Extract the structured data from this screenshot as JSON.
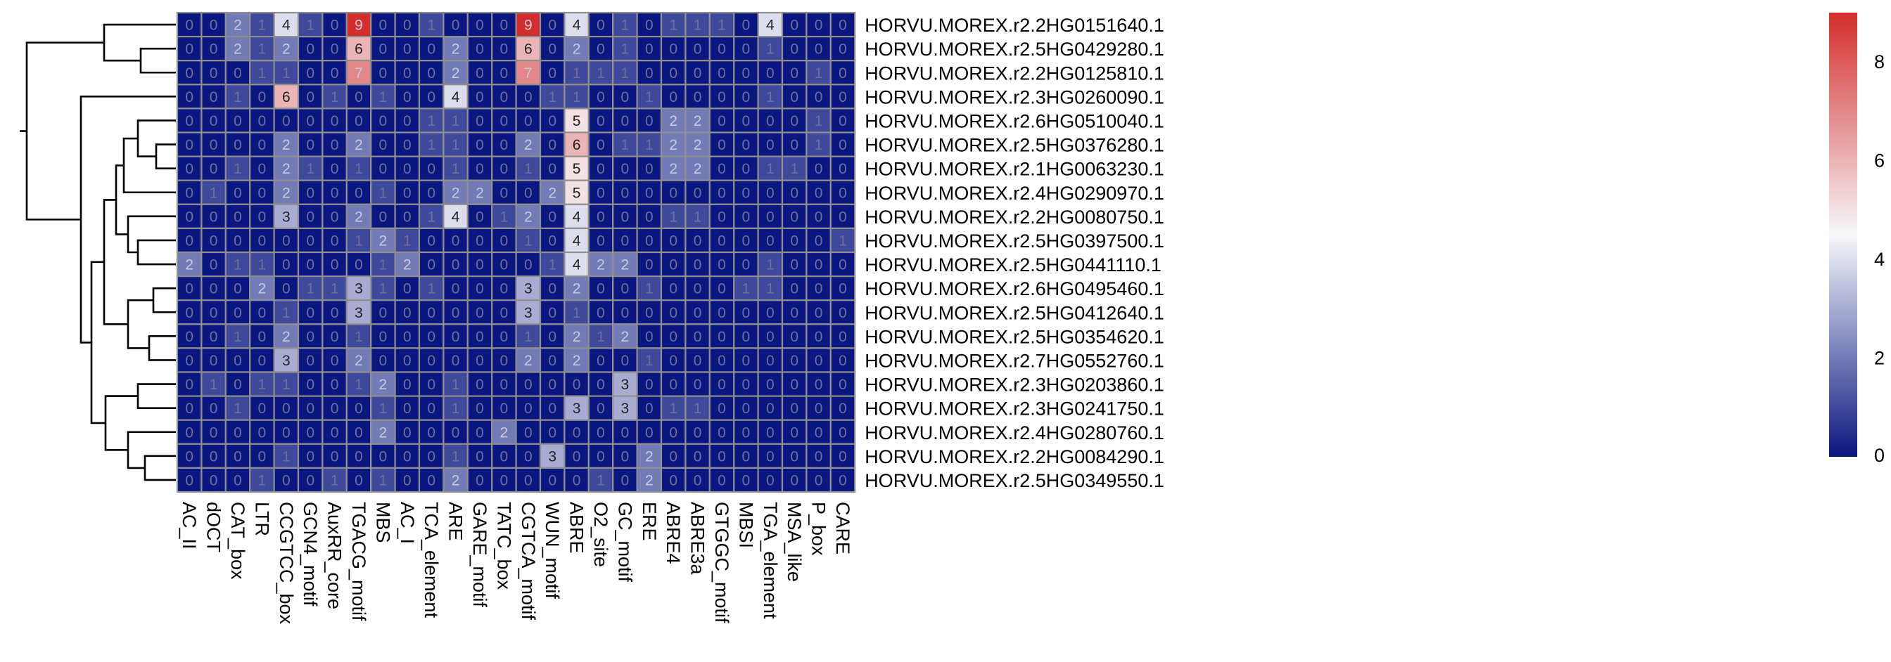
{
  "chart_data": {
    "type": "heatmap",
    "title": "",
    "xlabel": "",
    "ylabel": "",
    "columns": [
      "AC_II",
      "dOCT",
      "CAT_box",
      "LTR",
      "CCGTCC_box",
      "GCN4_motif",
      "AuxRR_core",
      "TGACG_motif",
      "MBS",
      "AC_I",
      "TCA_element",
      "ARE",
      "GARE_motif",
      "TATC_box",
      "CGTCA_motif",
      "WUN_motif",
      "ABRE",
      "O2_site",
      "GC_motif",
      "ERE",
      "ABRE4",
      "ABRE3a",
      "GTGGC_motif",
      "MBSI",
      "TGA_element",
      "MSA_like",
      "P_box",
      "CARE"
    ],
    "rows": [
      "HORVU.MOREX.r2.2HG0151640.1",
      "HORVU.MOREX.r2.5HG0429280.1",
      "HORVU.MOREX.r2.2HG0125810.1",
      "HORVU.MOREX.r2.3HG0260090.1",
      "HORVU.MOREX.r2.6HG0510040.1",
      "HORVU.MOREX.r2.5HG0376280.1",
      "HORVU.MOREX.r2.1HG0063230.1",
      "HORVU.MOREX.r2.4HG0290970.1",
      "HORVU.MOREX.r2.2HG0080750.1",
      "HORVU.MOREX.r2.5HG0397500.1",
      "HORVU.MOREX.r2.5HG0441110.1",
      "HORVU.MOREX.r2.6HG0495460.1",
      "HORVU.MOREX.r2.5HG0412640.1",
      "HORVU.MOREX.r2.5HG0354620.1",
      "HORVU.MOREX.r2.7HG0552760.1",
      "HORVU.MOREX.r2.3HG0203860.1",
      "HORVU.MOREX.r2.3HG0241750.1",
      "HORVU.MOREX.r2.4HG0280760.1",
      "HORVU.MOREX.r2.2HG0084290.1",
      "HORVU.MOREX.r2.5HG0349550.1"
    ],
    "values": [
      [
        0,
        0,
        2,
        1,
        4,
        1,
        0,
        9,
        0,
        0,
        1,
        0,
        0,
        0,
        9,
        0,
        4,
        0,
        1,
        0,
        1,
        1,
        1,
        0,
        4,
        0,
        0,
        0
      ],
      [
        0,
        0,
        2,
        1,
        2,
        0,
        0,
        6,
        0,
        0,
        0,
        2,
        0,
        0,
        6,
        0,
        2,
        0,
        1,
        0,
        0,
        0,
        0,
        0,
        1,
        0,
        0,
        0
      ],
      [
        0,
        0,
        0,
        1,
        1,
        0,
        0,
        7,
        0,
        0,
        0,
        2,
        0,
        0,
        7,
        0,
        1,
        1,
        1,
        0,
        0,
        0,
        0,
        0,
        0,
        0,
        1,
        0
      ],
      [
        0,
        0,
        1,
        0,
        6,
        0,
        1,
        0,
        1,
        0,
        0,
        4,
        0,
        0,
        0,
        1,
        1,
        0,
        0,
        1,
        0,
        0,
        0,
        0,
        1,
        0,
        0,
        0
      ],
      [
        0,
        0,
        0,
        0,
        0,
        0,
        0,
        0,
        0,
        0,
        1,
        1,
        0,
        0,
        0,
        0,
        5,
        0,
        0,
        0,
        2,
        2,
        0,
        0,
        0,
        0,
        1,
        0
      ],
      [
        0,
        0,
        0,
        0,
        2,
        0,
        0,
        2,
        0,
        0,
        1,
        1,
        0,
        0,
        2,
        0,
        6,
        0,
        1,
        1,
        2,
        2,
        0,
        0,
        0,
        0,
        1,
        0
      ],
      [
        0,
        0,
        1,
        0,
        2,
        1,
        0,
        1,
        0,
        0,
        0,
        1,
        0,
        0,
        1,
        0,
        5,
        0,
        0,
        0,
        2,
        2,
        0,
        0,
        1,
        1,
        0,
        0
      ],
      [
        0,
        1,
        0,
        0,
        2,
        0,
        0,
        0,
        1,
        0,
        0,
        2,
        2,
        0,
        0,
        2,
        5,
        0,
        0,
        0,
        0,
        0,
        0,
        0,
        0,
        0,
        0,
        0
      ],
      [
        0,
        0,
        0,
        0,
        3,
        0,
        0,
        2,
        0,
        0,
        1,
        4,
        0,
        1,
        2,
        0,
        4,
        0,
        0,
        0,
        1,
        1,
        0,
        0,
        0,
        0,
        0,
        0
      ],
      [
        0,
        0,
        0,
        0,
        0,
        0,
        0,
        1,
        2,
        1,
        0,
        0,
        0,
        0,
        1,
        0,
        4,
        0,
        0,
        0,
        0,
        0,
        0,
        0,
        0,
        0,
        0,
        1
      ],
      [
        2,
        0,
        1,
        1,
        0,
        0,
        0,
        0,
        1,
        2,
        0,
        0,
        0,
        0,
        0,
        1,
        4,
        2,
        2,
        0,
        0,
        0,
        0,
        0,
        1,
        0,
        0,
        0
      ],
      [
        0,
        0,
        0,
        2,
        0,
        1,
        1,
        3,
        1,
        0,
        1,
        0,
        0,
        0,
        3,
        0,
        2,
        0,
        0,
        1,
        0,
        0,
        0,
        1,
        1,
        0,
        0,
        0
      ],
      [
        0,
        0,
        0,
        0,
        1,
        0,
        0,
        3,
        0,
        0,
        0,
        0,
        0,
        0,
        3,
        0,
        1,
        0,
        0,
        0,
        0,
        0,
        0,
        0,
        0,
        0,
        0,
        0
      ],
      [
        0,
        0,
        1,
        0,
        2,
        0,
        0,
        1,
        0,
        0,
        0,
        0,
        0,
        0,
        1,
        0,
        2,
        1,
        2,
        0,
        0,
        0,
        0,
        0,
        0,
        0,
        0,
        0
      ],
      [
        0,
        0,
        0,
        0,
        3,
        0,
        0,
        2,
        0,
        0,
        0,
        0,
        0,
        0,
        2,
        0,
        2,
        0,
        0,
        1,
        0,
        0,
        0,
        0,
        0,
        0,
        0,
        0
      ],
      [
        0,
        1,
        0,
        1,
        1,
        0,
        0,
        1,
        2,
        0,
        0,
        1,
        0,
        0,
        0,
        0,
        0,
        0,
        3,
        0,
        0,
        0,
        0,
        0,
        0,
        0,
        0,
        0
      ],
      [
        0,
        0,
        1,
        0,
        0,
        0,
        0,
        0,
        1,
        0,
        0,
        1,
        0,
        0,
        0,
        0,
        3,
        0,
        3,
        0,
        1,
        1,
        0,
        0,
        0,
        0,
        0,
        0
      ],
      [
        0,
        0,
        0,
        0,
        0,
        0,
        0,
        0,
        2,
        0,
        0,
        0,
        0,
        2,
        0,
        0,
        0,
        0,
        0,
        0,
        0,
        0,
        0,
        0,
        0,
        0,
        0,
        0
      ],
      [
        0,
        0,
        0,
        0,
        1,
        0,
        0,
        0,
        0,
        0,
        0,
        1,
        0,
        0,
        0,
        3,
        0,
        0,
        0,
        2,
        0,
        0,
        0,
        0,
        0,
        0,
        0,
        0
      ],
      [
        0,
        0,
        0,
        1,
        0,
        0,
        1,
        0,
        1,
        0,
        0,
        2,
        0,
        0,
        0,
        0,
        0,
        1,
        0,
        2,
        0,
        0,
        0,
        0,
        0,
        0,
        0,
        0
      ]
    ],
    "color_scale": {
      "low": "#0a1780",
      "mid": "#f7f7fb",
      "high": "#d42e2c",
      "min": 0,
      "max": 9,
      "mid_value": 4.5
    },
    "legend_ticks": [
      0,
      2,
      4,
      6,
      8
    ],
    "dendrogram": {
      "side": "left",
      "leaf_order": "rows"
    },
    "cell_border_color": "#8f8f8f"
  }
}
